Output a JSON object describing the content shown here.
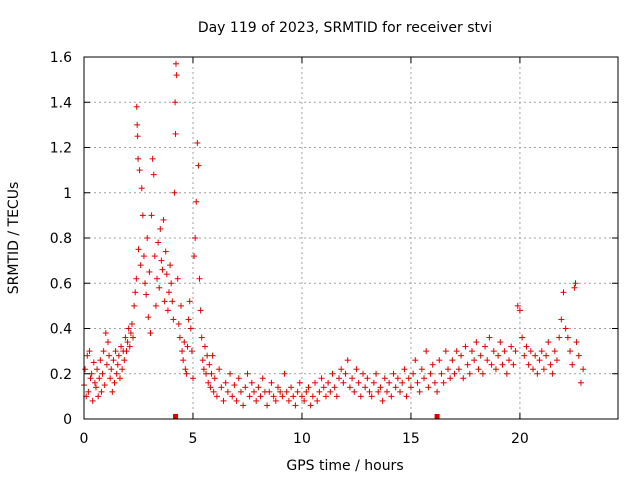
{
  "chart_data": {
    "type": "scatter",
    "title": "Day 119 of 2023, SRMTID for receiver stvi",
    "xlabel": "GPS time / hours",
    "ylabel": "SRMTID / TECUs",
    "xlim": [
      0,
      24.5
    ],
    "ylim": [
      0,
      1.6
    ],
    "xticks": [
      0,
      5,
      10,
      15,
      20
    ],
    "xtick_labels": [
      "0",
      "5",
      "10",
      "15",
      "20"
    ],
    "yticks": [
      0,
      0.2,
      0.4,
      0.6,
      0.8,
      1.0,
      1.2,
      1.4,
      1.6
    ],
    "ytick_labels": [
      "0",
      "0.2",
      "0.4",
      "0.6",
      "0.8",
      "1",
      "1.2",
      "1.4",
      "1.6"
    ],
    "grid": true,
    "marker": "plus",
    "color": "#e00000",
    "series": [
      {
        "name": "SRMTID",
        "points": [
          [
            0.0,
            0.15
          ],
          [
            0.05,
            0.22
          ],
          [
            0.1,
            0.1
          ],
          [
            0.15,
            0.28
          ],
          [
            0.2,
            0.12
          ],
          [
            0.25,
            0.3
          ],
          [
            0.3,
            0.18
          ],
          [
            0.35,
            0.2
          ],
          [
            0.4,
            0.08
          ],
          [
            0.45,
            0.25
          ],
          [
            0.5,
            0.16
          ],
          [
            0.55,
            0.14
          ],
          [
            0.6,
            0.22
          ],
          [
            0.65,
            0.1
          ],
          [
            0.7,
            0.18
          ],
          [
            0.75,
            0.26
          ],
          [
            0.8,
            0.12
          ],
          [
            0.85,
            0.2
          ],
          [
            0.9,
            0.3
          ],
          [
            0.95,
            0.15
          ],
          [
            1.0,
            0.38
          ],
          [
            1.05,
            0.24
          ],
          [
            1.1,
            0.34
          ],
          [
            1.15,
            0.28
          ],
          [
            1.2,
            0.18
          ],
          [
            1.25,
            0.22
          ],
          [
            1.3,
            0.12
          ],
          [
            1.35,
            0.26
          ],
          [
            1.4,
            0.16
          ],
          [
            1.45,
            0.3
          ],
          [
            1.5,
            0.2
          ],
          [
            1.55,
            0.24
          ],
          [
            1.6,
            0.28
          ],
          [
            1.65,
            0.18
          ],
          [
            1.7,
            0.32
          ],
          [
            1.75,
            0.22
          ],
          [
            1.8,
            0.3
          ],
          [
            1.85,
            0.26
          ],
          [
            1.9,
            0.36
          ],
          [
            1.95,
            0.3
          ],
          [
            2.0,
            0.34
          ],
          [
            2.05,
            0.4
          ],
          [
            2.1,
            0.32
          ],
          [
            2.15,
            0.38
          ],
          [
            2.2,
            0.42
          ],
          [
            2.25,
            0.36
          ],
          [
            2.3,
            0.5
          ],
          [
            2.35,
            0.56
          ],
          [
            2.4,
            0.62
          ],
          [
            2.42,
            1.38
          ],
          [
            2.44,
            1.3
          ],
          [
            2.46,
            1.25
          ],
          [
            2.48,
            1.15
          ],
          [
            2.5,
            0.75
          ],
          [
            2.55,
            1.1
          ],
          [
            2.6,
            0.68
          ],
          [
            2.65,
            1.02
          ],
          [
            2.7,
            0.9
          ],
          [
            2.75,
            0.72
          ],
          [
            2.8,
            0.6
          ],
          [
            2.85,
            0.55
          ],
          [
            2.9,
            0.8
          ],
          [
            2.95,
            0.45
          ],
          [
            3.0,
            0.65
          ],
          [
            3.05,
            0.38
          ],
          [
            3.1,
            0.9
          ],
          [
            3.15,
            1.15
          ],
          [
            3.2,
            1.08
          ],
          [
            3.25,
            0.72
          ],
          [
            3.3,
            0.5
          ],
          [
            3.35,
            0.62
          ],
          [
            3.4,
            0.78
          ],
          [
            3.45,
            0.58
          ],
          [
            3.5,
            0.84
          ],
          [
            3.55,
            0.7
          ],
          [
            3.6,
            0.66
          ],
          [
            3.65,
            0.88
          ],
          [
            3.7,
            0.52
          ],
          [
            3.75,
            0.74
          ],
          [
            3.8,
            0.64
          ],
          [
            3.85,
            0.48
          ],
          [
            3.9,
            0.56
          ],
          [
            3.95,
            0.68
          ],
          [
            4.0,
            0.6
          ],
          [
            4.05,
            0.52
          ],
          [
            4.1,
            0.44
          ],
          [
            4.15,
            1.0
          ],
          [
            4.18,
            1.4
          ],
          [
            4.2,
            1.26
          ],
          [
            4.22,
            1.57
          ],
          [
            4.25,
            1.52
          ],
          [
            4.3,
            0.62
          ],
          [
            4.35,
            0.42
          ],
          [
            4.4,
            0.36
          ],
          [
            4.45,
            0.5
          ],
          [
            4.5,
            0.3
          ],
          [
            4.55,
            0.26
          ],
          [
            4.6,
            0.34
          ],
          [
            4.65,
            0.22
          ],
          [
            4.7,
            0.2
          ],
          [
            4.75,
            0.32
          ],
          [
            4.8,
            0.44
          ],
          [
            4.85,
            0.52
          ],
          [
            4.9,
            0.4
          ],
          [
            4.95,
            0.3
          ],
          [
            5.0,
            0.18
          ],
          [
            5.05,
            0.72
          ],
          [
            5.1,
            0.8
          ],
          [
            5.15,
            0.96
          ],
          [
            5.2,
            1.22
          ],
          [
            5.25,
            1.12
          ],
          [
            5.3,
            0.62
          ],
          [
            5.35,
            0.48
          ],
          [
            5.4,
            0.36
          ],
          [
            5.45,
            0.26
          ],
          [
            5.5,
            0.22
          ],
          [
            5.55,
            0.32
          ],
          [
            5.6,
            0.2
          ],
          [
            5.65,
            0.28
          ],
          [
            5.7,
            0.16
          ],
          [
            5.75,
            0.24
          ],
          [
            5.8,
            0.14
          ],
          [
            5.85,
            0.2
          ],
          [
            5.9,
            0.28
          ],
          [
            5.95,
            0.12
          ],
          [
            6.0,
            0.18
          ],
          [
            6.1,
            0.1
          ],
          [
            6.2,
            0.22
          ],
          [
            6.3,
            0.14
          ],
          [
            6.4,
            0.08
          ],
          [
            6.5,
            0.16
          ],
          [
            6.6,
            0.12
          ],
          [
            6.7,
            0.2
          ],
          [
            6.8,
            0.1
          ],
          [
            6.9,
            0.15
          ],
          [
            7.0,
            0.08
          ],
          [
            7.1,
            0.18
          ],
          [
            7.2,
            0.12
          ],
          [
            7.3,
            0.06
          ],
          [
            7.4,
            0.14
          ],
          [
            7.5,
            0.2
          ],
          [
            7.6,
            0.1
          ],
          [
            7.7,
            0.16
          ],
          [
            7.8,
            0.12
          ],
          [
            7.9,
            0.08
          ],
          [
            8.0,
            0.14
          ],
          [
            8.1,
            0.1
          ],
          [
            8.2,
            0.18
          ],
          [
            8.3,
            0.12
          ],
          [
            8.4,
            0.06
          ],
          [
            8.5,
            0.12
          ],
          [
            8.6,
            0.16
          ],
          [
            8.7,
            0.1
          ],
          [
            8.8,
            0.08
          ],
          [
            8.9,
            0.14
          ],
          [
            9.0,
            0.12
          ],
          [
            9.1,
            0.1
          ],
          [
            9.2,
            0.2
          ],
          [
            9.3,
            0.12
          ],
          [
            9.4,
            0.08
          ],
          [
            9.5,
            0.14
          ],
          [
            9.6,
            0.1
          ],
          [
            9.7,
            0.06
          ],
          [
            9.8,
            0.12
          ],
          [
            9.9,
            0.16
          ],
          [
            10.0,
            0.1
          ],
          [
            10.1,
            0.08
          ],
          [
            10.2,
            0.12
          ],
          [
            10.3,
            0.14
          ],
          [
            10.4,
            0.06
          ],
          [
            10.5,
            0.1
          ],
          [
            10.6,
            0.16
          ],
          [
            10.7,
            0.08
          ],
          [
            10.8,
            0.12
          ],
          [
            10.9,
            0.18
          ],
          [
            11.0,
            0.14
          ],
          [
            11.1,
            0.1
          ],
          [
            11.2,
            0.16
          ],
          [
            11.3,
            0.12
          ],
          [
            11.4,
            0.2
          ],
          [
            11.5,
            0.14
          ],
          [
            11.6,
            0.1
          ],
          [
            11.7,
            0.18
          ],
          [
            11.8,
            0.22
          ],
          [
            11.9,
            0.16
          ],
          [
            12.0,
            0.2
          ],
          [
            12.1,
            0.26
          ],
          [
            12.2,
            0.14
          ],
          [
            12.3,
            0.18
          ],
          [
            12.4,
            0.12
          ],
          [
            12.5,
            0.22
          ],
          [
            12.6,
            0.16
          ],
          [
            12.7,
            0.1
          ],
          [
            12.8,
            0.2
          ],
          [
            12.9,
            0.14
          ],
          [
            13.0,
            0.18
          ],
          [
            13.1,
            0.12
          ],
          [
            13.2,
            0.1
          ],
          [
            13.3,
            0.16
          ],
          [
            13.4,
            0.2
          ],
          [
            13.5,
            0.12
          ],
          [
            13.6,
            0.14
          ],
          [
            13.7,
            0.08
          ],
          [
            13.8,
            0.18
          ],
          [
            13.9,
            0.12
          ],
          [
            14.0,
            0.16
          ],
          [
            14.1,
            0.1
          ],
          [
            14.2,
            0.2
          ],
          [
            14.3,
            0.14
          ],
          [
            14.4,
            0.18
          ],
          [
            14.5,
            0.12
          ],
          [
            14.6,
            0.16
          ],
          [
            14.7,
            0.22
          ],
          [
            14.8,
            0.1
          ],
          [
            14.9,
            0.18
          ],
          [
            15.0,
            0.14
          ],
          [
            15.1,
            0.2
          ],
          [
            15.2,
            0.26
          ],
          [
            15.3,
            0.16
          ],
          [
            15.4,
            0.12
          ],
          [
            15.5,
            0.22
          ],
          [
            15.6,
            0.18
          ],
          [
            15.7,
            0.3
          ],
          [
            15.8,
            0.14
          ],
          [
            15.9,
            0.2
          ],
          [
            16.0,
            0.24
          ],
          [
            16.1,
            0.16
          ],
          [
            16.2,
            0.12
          ],
          [
            16.3,
            0.26
          ],
          [
            16.4,
            0.2
          ],
          [
            16.5,
            0.16
          ],
          [
            16.6,
            0.3
          ],
          [
            16.7,
            0.22
          ],
          [
            16.8,
            0.18
          ],
          [
            16.9,
            0.26
          ],
          [
            17.0,
            0.2
          ],
          [
            17.1,
            0.3
          ],
          [
            17.2,
            0.22
          ],
          [
            17.3,
            0.28
          ],
          [
            17.4,
            0.18
          ],
          [
            17.5,
            0.32
          ],
          [
            17.6,
            0.24
          ],
          [
            17.7,
            0.2
          ],
          [
            17.8,
            0.3
          ],
          [
            17.9,
            0.26
          ],
          [
            18.0,
            0.34
          ],
          [
            18.1,
            0.22
          ],
          [
            18.2,
            0.28
          ],
          [
            18.3,
            0.2
          ],
          [
            18.4,
            0.32
          ],
          [
            18.5,
            0.26
          ],
          [
            18.6,
            0.36
          ],
          [
            18.7,
            0.24
          ],
          [
            18.8,
            0.3
          ],
          [
            18.9,
            0.22
          ],
          [
            19.0,
            0.28
          ],
          [
            19.1,
            0.34
          ],
          [
            19.2,
            0.24
          ],
          [
            19.3,
            0.3
          ],
          [
            19.4,
            0.2
          ],
          [
            19.5,
            0.26
          ],
          [
            19.6,
            0.32
          ],
          [
            19.7,
            0.24
          ],
          [
            19.8,
            0.3
          ],
          [
            19.9,
            0.5
          ],
          [
            20.0,
            0.48
          ],
          [
            20.1,
            0.36
          ],
          [
            20.2,
            0.28
          ],
          [
            20.3,
            0.32
          ],
          [
            20.4,
            0.24
          ],
          [
            20.5,
            0.3
          ],
          [
            20.6,
            0.22
          ],
          [
            20.7,
            0.28
          ],
          [
            20.8,
            0.2
          ],
          [
            20.9,
            0.26
          ],
          [
            21.0,
            0.3
          ],
          [
            21.1,
            0.22
          ],
          [
            21.2,
            0.28
          ],
          [
            21.3,
            0.34
          ],
          [
            21.4,
            0.24
          ],
          [
            21.5,
            0.2
          ],
          [
            21.6,
            0.3
          ],
          [
            21.7,
            0.26
          ],
          [
            21.8,
            0.36
          ],
          [
            21.9,
            0.44
          ],
          [
            22.0,
            0.56
          ],
          [
            22.1,
            0.4
          ],
          [
            22.2,
            0.36
          ],
          [
            22.3,
            0.3
          ],
          [
            22.4,
            0.24
          ],
          [
            22.5,
            0.58
          ],
          [
            22.55,
            0.6
          ],
          [
            22.6,
            0.34
          ],
          [
            22.7,
            0.28
          ],
          [
            22.8,
            0.16
          ],
          [
            22.9,
            0.22
          ]
        ]
      }
    ],
    "gap_markers_x": [
      4.2,
      16.2
    ]
  }
}
